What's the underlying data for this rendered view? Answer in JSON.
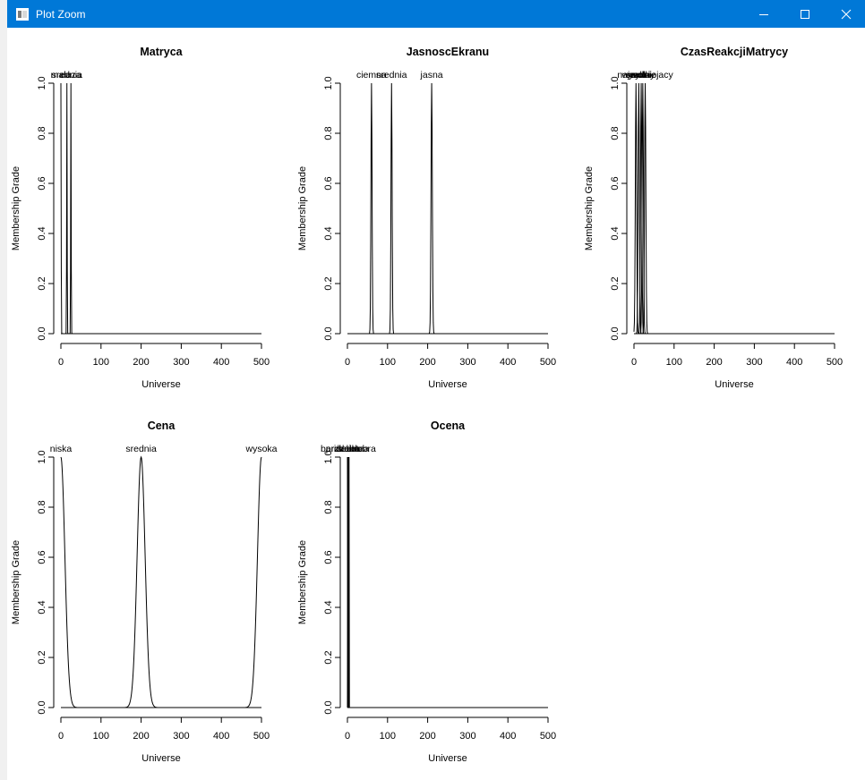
{
  "window": {
    "title": "Plot Zoom"
  },
  "chart_data": [
    {
      "type": "line",
      "title": "Matryca",
      "xlabel": "Universe",
      "ylabel": "Membership Grade",
      "xlim": [
        0,
        500
      ],
      "ylim": [
        0,
        1
      ],
      "xticks": [
        "0",
        "100",
        "200",
        "300",
        "400",
        "500"
      ],
      "yticks": [
        "0.0",
        "0.2",
        "0.4",
        "0.6",
        "0.8",
        "1.0"
      ],
      "series": [
        {
          "name": "mala",
          "center": 0,
          "width": 0.6
        },
        {
          "name": "srednia",
          "center": 15,
          "width": 0.6
        },
        {
          "name": "duza",
          "center": 25,
          "width": 0.6
        }
      ]
    },
    {
      "type": "line",
      "title": "JasnoscEkranu",
      "xlabel": "Universe",
      "ylabel": "Membership Grade",
      "xlim": [
        0,
        500
      ],
      "ylim": [
        0,
        1
      ],
      "xticks": [
        "0",
        "100",
        "200",
        "300",
        "400",
        "500"
      ],
      "yticks": [
        "0.0",
        "0.2",
        "0.4",
        "0.6",
        "0.8",
        "1.0"
      ],
      "series": [
        {
          "name": "ciemna",
          "center": 60,
          "width": 1.4
        },
        {
          "name": "srednia",
          "center": 110,
          "width": 1.4
        },
        {
          "name": "jasna",
          "center": 210,
          "width": 1.6
        }
      ]
    },
    {
      "type": "line",
      "title": "CzasReakcjiMatrycy",
      "xlabel": "Universe",
      "ylabel": "Membership Grade",
      "xlim": [
        0,
        500
      ],
      "ylim": [
        0,
        1
      ],
      "xticks": [
        "0",
        "100",
        "200",
        "300",
        "400",
        "500"
      ],
      "yticks": [
        "0.0",
        "0.2",
        "0.4",
        "0.6",
        "0.8",
        "1.0"
      ],
      "series": [
        {
          "name": "wysoki",
          "center": 5,
          "width": 1.6
        },
        {
          "name": "szybki",
          "center": 12,
          "width": 1.6
        },
        {
          "name": "srednio",
          "center": 18,
          "width": 1.6
        },
        {
          "name": "wolny",
          "center": 22,
          "width": 1.6
        },
        {
          "name": "najwolniejacy",
          "center": 28,
          "width": 1.6
        }
      ]
    },
    {
      "type": "line",
      "title": "Cena",
      "xlabel": "Universe",
      "ylabel": "Membership Grade",
      "xlim": [
        0,
        500
      ],
      "ylim": [
        0,
        1
      ],
      "xticks": [
        "0",
        "100",
        "200",
        "300",
        "400",
        "500"
      ],
      "yticks": [
        "0.0",
        "0.2",
        "0.4",
        "0.6",
        "0.8",
        "1.0"
      ],
      "series": [
        {
          "name": "niska",
          "center": 0,
          "width": 10
        },
        {
          "name": "srednia",
          "center": 200,
          "width": 10
        },
        {
          "name": "wysoka",
          "center": 500,
          "width": 10
        }
      ]
    },
    {
      "type": "line",
      "title": "Ocena",
      "xlabel": "Universe",
      "ylabel": "Membership Grade",
      "xlim": [
        0,
        500
      ],
      "ylim": [
        0,
        1
      ],
      "xticks": [
        "0",
        "100",
        "200",
        "300",
        "400",
        "500"
      ],
      "yticks": [
        "0.0",
        "0.2",
        "0.4",
        "0.6",
        "0.8",
        "1.0"
      ],
      "series": [
        {
          "name": "przecietna",
          "center": 0,
          "width": 0.2
        },
        {
          "name": "dobra",
          "center": 1,
          "width": 0.2
        },
        {
          "name": "bardzo dobra",
          "center": 2,
          "width": 0.2
        },
        {
          "name": "slaba",
          "center": 3,
          "width": 0.2
        },
        {
          "name": "idealna",
          "center": 4,
          "width": 0.2
        }
      ]
    }
  ]
}
